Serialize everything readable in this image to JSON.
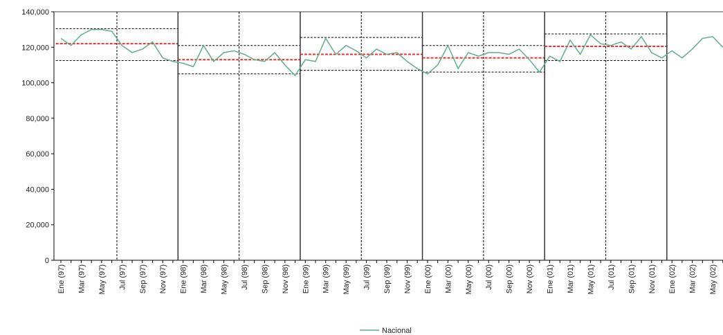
{
  "chart_data": {
    "type": "line",
    "categories": [
      "Ene (97)",
      null,
      "Mar (97)",
      null,
      "May (97)",
      null,
      "Jul (97)",
      null,
      "Sep (97)",
      null,
      "Nov (97)",
      null,
      "Ene (98)",
      null,
      "Mar (98)",
      null,
      "May (98)",
      null,
      "Jul (98)",
      null,
      "Sep (98)",
      null,
      "Nov (98)",
      null,
      "Ene (99)",
      null,
      "Mar (99)",
      null,
      "May (99)",
      null,
      "Jul (99)",
      null,
      "Sep (99)",
      null,
      "Nov (99)",
      null,
      "Ene (00)",
      null,
      "Mar (00)",
      null,
      "May (00)",
      null,
      "Jul (00)",
      null,
      "Sep (00)",
      null,
      "Nov (00)",
      null,
      "Ene (01)",
      null,
      "Mar (01)",
      null,
      "May (01)",
      null,
      "Jul (01)",
      null,
      "Sep (01)",
      null,
      "Nov (01)",
      null,
      "Ene (02)",
      null,
      "Mar (02)",
      null,
      "May (02)",
      null
    ],
    "series": [
      {
        "name": "Nacional",
        "color": "#5fae8a",
        "values": [
          125000,
          121000,
          127000,
          130000,
          130000,
          129000,
          121000,
          117000,
          119000,
          123000,
          114000,
          112000,
          111000,
          109000,
          121000,
          112000,
          117000,
          118000,
          116000,
          113000,
          112000,
          117000,
          110000,
          104000,
          113000,
          112000,
          125000,
          116000,
          121000,
          118000,
          114000,
          119000,
          116000,
          117000,
          112000,
          108000,
          105000,
          110000,
          121000,
          108000,
          117000,
          115000,
          117000,
          117000,
          116000,
          119000,
          113000,
          106000,
          115000,
          112000,
          124000,
          116000,
          127000,
          122000,
          121000,
          123000,
          119000,
          126000,
          117000,
          114000,
          118000,
          114000,
          119000,
          125000,
          126000,
          120000
        ]
      }
    ],
    "bands": [
      {
        "mean": 122000,
        "upper": 130500,
        "lower": 112500
      },
      {
        "mean": 113000,
        "upper": 121000,
        "lower": 105000
      },
      {
        "mean": 116000,
        "upper": 125500,
        "lower": 107000
      },
      {
        "mean": 114000,
        "upper": 121000,
        "lower": 106000
      },
      {
        "mean": 120500,
        "upper": 127500,
        "lower": 112500
      }
    ],
    "ylim": [
      0,
      140000
    ],
    "yticks": [
      0,
      {
        "value": 20000,
        "label": "20,000"
      },
      {
        "value": 40000,
        "label": "40,000"
      },
      {
        "value": 60000,
        "label": "60,000"
      },
      {
        "value": 80000,
        "label": "80,000"
      },
      {
        "value": 100000,
        "label": "100,000"
      },
      {
        "value": 120000,
        "label": "120,000"
      },
      {
        "value": 140000,
        "label": "140,000"
      }
    ],
    "legend": "bottom"
  }
}
